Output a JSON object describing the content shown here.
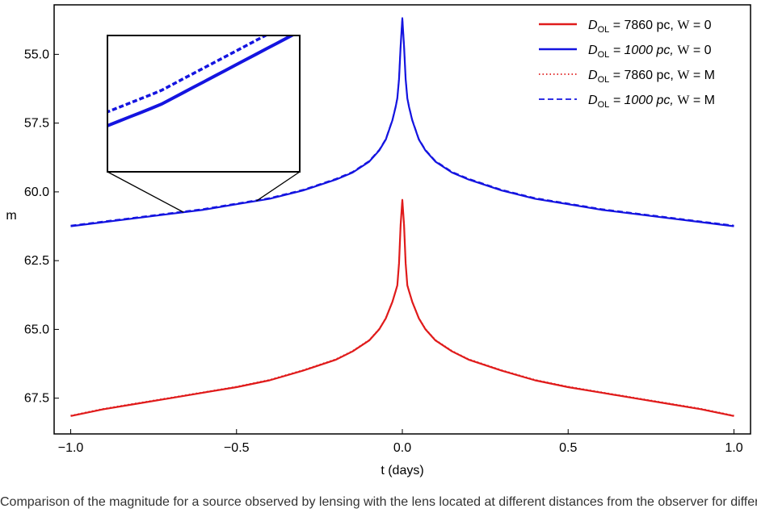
{
  "chart_data": {
    "type": "line",
    "xlabel": "t  (days)",
    "ylabel": "m",
    "xlim": [
      -1.05,
      1.05
    ],
    "ylim": [
      68.8,
      53.2
    ],
    "y_inverted": true,
    "xticks": [
      -1.0,
      -0.5,
      0.0,
      0.5,
      1.0
    ],
    "xtick_labels": [
      "−1.0",
      "−0.5",
      "0.0",
      "0.5",
      "1.0"
    ],
    "yticks": [
      55.0,
      57.5,
      60.0,
      62.5,
      65.0,
      67.5
    ],
    "ytick_labels": [
      "55.0",
      "57.5",
      "60.0",
      "62.5",
      "65.0",
      "67.5"
    ],
    "grid": false,
    "legend_position": "top-right",
    "series": [
      {
        "name": "D_OL = 7860 pc, W = 0",
        "legend": {
          "d": "D",
          "sub": "OL",
          "rest": "= 7860 pc,",
          "w": "W",
          "eq": "= 0"
        },
        "color": "#e01b1b",
        "style": "solid",
        "x": [
          -1.0,
          -0.9,
          -0.8,
          -0.7,
          -0.6,
          -0.5,
          -0.4,
          -0.3,
          -0.2,
          -0.15,
          -0.1,
          -0.07,
          -0.05,
          -0.03,
          -0.02,
          -0.015,
          -0.01,
          -0.005,
          0.0,
          0.005,
          0.01,
          0.015,
          0.02,
          0.03,
          0.05,
          0.07,
          0.1,
          0.15,
          0.2,
          0.3,
          0.4,
          0.5,
          0.6,
          0.7,
          0.8,
          0.9,
          1.0
        ],
        "y": [
          68.15,
          67.9,
          67.7,
          67.5,
          67.3,
          67.1,
          66.85,
          66.5,
          66.1,
          65.8,
          65.4,
          65.0,
          64.6,
          64.0,
          63.6,
          63.4,
          62.6,
          61.2,
          60.3,
          61.2,
          62.6,
          63.4,
          63.6,
          64.0,
          64.6,
          65.0,
          65.4,
          65.8,
          66.1,
          66.5,
          66.85,
          67.1,
          67.3,
          67.5,
          67.7,
          67.9,
          68.15
        ]
      },
      {
        "name": "D_OL = 1000 pc, W = 0",
        "legend": {
          "d": "D",
          "sub": "OL",
          "rest": "= 1000 pc,",
          "w": "W",
          "eq": "= 0"
        },
        "color": "#1414e0",
        "style": "solid",
        "x": [
          -1.0,
          -0.9,
          -0.8,
          -0.7,
          -0.6,
          -0.5,
          -0.4,
          -0.3,
          -0.2,
          -0.15,
          -0.1,
          -0.07,
          -0.05,
          -0.03,
          -0.02,
          -0.015,
          -0.01,
          -0.005,
          0.0,
          0.005,
          0.01,
          0.015,
          0.02,
          0.03,
          0.05,
          0.07,
          0.1,
          0.15,
          0.2,
          0.3,
          0.4,
          0.5,
          0.6,
          0.7,
          0.8,
          0.9,
          1.0
        ],
        "y": [
          61.25,
          61.1,
          60.95,
          60.8,
          60.65,
          60.45,
          60.25,
          59.95,
          59.55,
          59.3,
          58.9,
          58.5,
          58.1,
          57.4,
          56.9,
          56.6,
          55.9,
          54.7,
          53.7,
          54.7,
          55.9,
          56.6,
          56.9,
          57.4,
          58.1,
          58.5,
          58.9,
          59.3,
          59.55,
          59.95,
          60.25,
          60.45,
          60.65,
          60.8,
          60.95,
          61.1,
          61.25
        ]
      },
      {
        "name": "D_OL = 7860 pc, W = M",
        "legend": {
          "d": "D",
          "sub": "OL",
          "rest": "= 7860 pc,",
          "w": "W",
          "eq": "= M"
        },
        "color": "#e01b1b",
        "style": "dotted",
        "x": [
          -1.0,
          -0.9,
          -0.8,
          -0.7,
          -0.6,
          -0.5,
          -0.4,
          -0.3,
          -0.2,
          -0.15,
          -0.1,
          -0.07,
          -0.05,
          -0.03,
          -0.02,
          -0.015,
          -0.01,
          -0.005,
          0.0,
          0.005,
          0.01,
          0.015,
          0.02,
          0.03,
          0.05,
          0.07,
          0.1,
          0.15,
          0.2,
          0.3,
          0.4,
          0.5,
          0.6,
          0.7,
          0.8,
          0.9,
          1.0
        ],
        "y": [
          68.13,
          67.88,
          67.68,
          67.48,
          67.28,
          67.08,
          66.83,
          66.48,
          66.08,
          65.78,
          65.38,
          64.98,
          64.58,
          63.98,
          63.58,
          63.38,
          62.58,
          61.18,
          60.28,
          61.18,
          62.58,
          63.38,
          63.58,
          63.98,
          64.58,
          64.98,
          65.38,
          65.78,
          66.08,
          66.48,
          66.83,
          67.08,
          67.28,
          67.48,
          67.68,
          67.88,
          68.13
        ]
      },
      {
        "name": "D_OL = 1000 pc, W = M",
        "legend": {
          "d": "D",
          "sub": "OL",
          "rest": "= 1000 pc,",
          "w": "W",
          "eq": "= M"
        },
        "color": "#1414e0",
        "style": "dashed",
        "x": [
          -1.0,
          -0.9,
          -0.8,
          -0.7,
          -0.6,
          -0.5,
          -0.4,
          -0.3,
          -0.2,
          -0.15,
          -0.1,
          -0.07,
          -0.05,
          -0.03,
          -0.02,
          -0.015,
          -0.01,
          -0.005,
          0.0,
          0.005,
          0.01,
          0.015,
          0.02,
          0.03,
          0.05,
          0.07,
          0.1,
          0.15,
          0.2,
          0.3,
          0.4,
          0.5,
          0.6,
          0.7,
          0.8,
          0.9,
          1.0
        ],
        "y": [
          61.22,
          61.07,
          60.92,
          60.77,
          60.62,
          60.42,
          60.22,
          59.92,
          59.52,
          59.27,
          58.87,
          58.47,
          58.07,
          57.37,
          56.87,
          56.57,
          55.87,
          54.67,
          53.67,
          54.67,
          55.87,
          56.57,
          56.87,
          57.37,
          58.07,
          58.47,
          58.87,
          59.27,
          59.52,
          59.92,
          60.22,
          60.42,
          60.62,
          60.77,
          60.92,
          61.07,
          61.22
        ]
      }
    ],
    "inset": {
      "zoom_region_x": [
        -0.66,
        -0.44
      ],
      "zoom_region_y": [
        60.8,
        60.45
      ]
    }
  },
  "caption": "Comparison of the magnitude for a source observed by lensing with the lens located at different distances from the observer for different values of W"
}
